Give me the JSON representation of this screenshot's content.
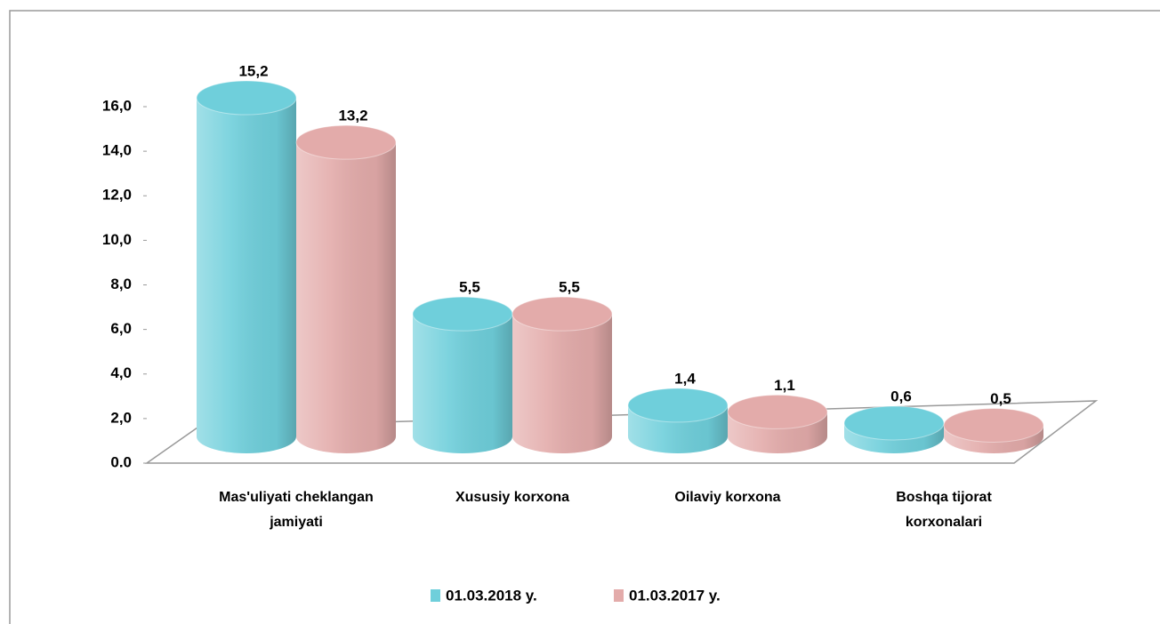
{
  "chart_data": {
    "type": "bar",
    "categories": [
      "Mas'uliyati cheklangan jamiyati",
      "Xususiy korxona",
      "Oilaviy korxona",
      "Boshqa tijorat korxonalari"
    ],
    "series": [
      {
        "name": "01.03.2018 y.",
        "color": "#6fcfdb",
        "values": [
          15.2,
          5.5,
          1.4,
          0.6
        ],
        "value_labels": [
          "15,2",
          "5,5",
          "1,4",
          "0,6"
        ]
      },
      {
        "name": "01.03.2017 y.",
        "color": "#e3abaa",
        "values": [
          13.2,
          5.5,
          1.1,
          0.5
        ],
        "value_labels": [
          "13,2",
          "5,5",
          "1,1",
          "0,5"
        ]
      }
    ],
    "ylim": [
      0,
      16
    ],
    "yticks": [
      {
        "value": 0,
        "label": "0.0"
      },
      {
        "value": 2,
        "label": "2,0"
      },
      {
        "value": 4,
        "label": "4,0"
      },
      {
        "value": 6,
        "label": "6,0"
      },
      {
        "value": 8,
        "label": "8,0"
      },
      {
        "value": 10,
        "label": "10,0"
      },
      {
        "value": 12,
        "label": "12,0"
      },
      {
        "value": 14,
        "label": "14,0"
      },
      {
        "value": 16,
        "label": "16,0"
      }
    ],
    "legend": "bottom"
  }
}
